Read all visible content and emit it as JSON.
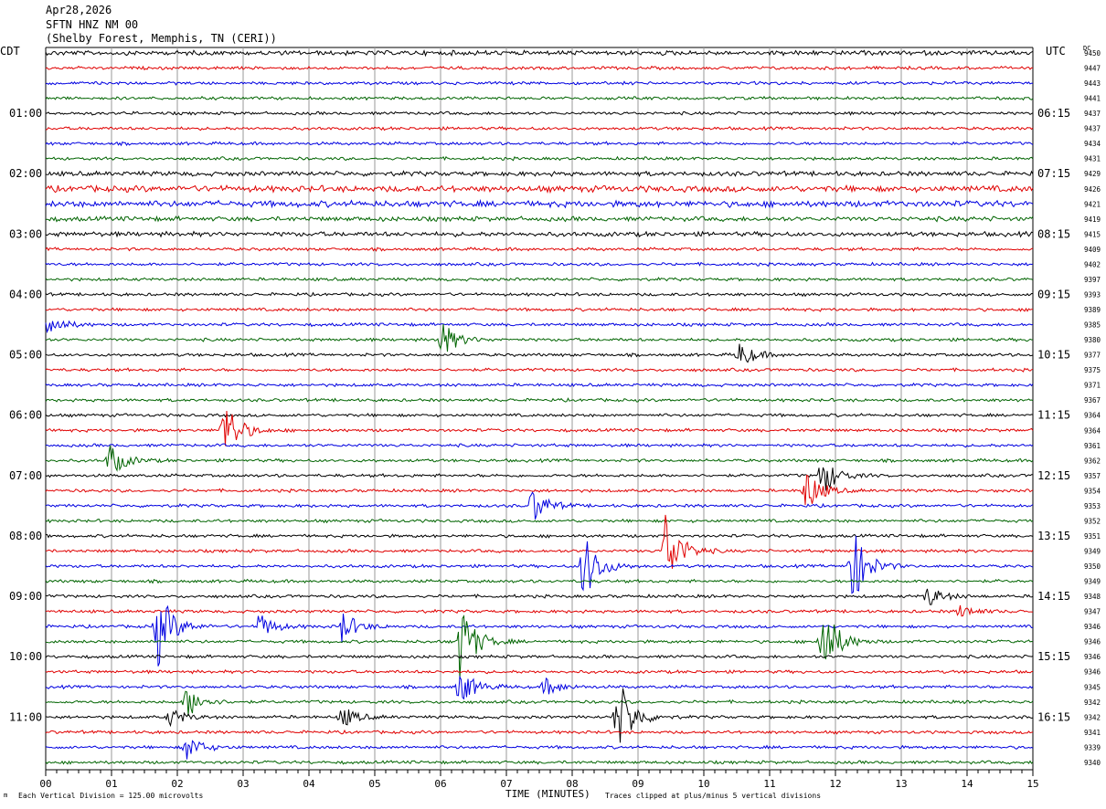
{
  "header": {
    "date": "Apr28,2026",
    "station": "SFTN HNZ NM 00",
    "location": "(Shelby Forest, Memphis, TN (CERI))"
  },
  "labels": {
    "left_tz": "CDT",
    "right_tz": "UTC",
    "dc": "DC"
  },
  "footer": {
    "scale_note": "Each Vertical Division =  125.00 microvolts",
    "xlabel": "TIME (MINUTES)",
    "clip_note": "Traces clipped at plus/minus 5 vertical divisions",
    "corner_mark": "m"
  },
  "colors": {
    "trace_cycle": [
      "#000000",
      "#e00000",
      "#0000e0",
      "#006400"
    ],
    "grid": "#9a9a9a"
  },
  "chart_data": {
    "type": "helicorder",
    "xlabel": "TIME (MINUTES)",
    "xlim": [
      0,
      15
    ],
    "xticks": [
      "00",
      "01",
      "02",
      "03",
      "04",
      "05",
      "06",
      "07",
      "08",
      "09",
      "10",
      "11",
      "12",
      "13",
      "14",
      "15"
    ],
    "line_duration_minutes": 15,
    "num_lines": 48,
    "left_time_labels": [
      {
        "line": 4,
        "label": "01:00"
      },
      {
        "line": 8,
        "label": "02:00"
      },
      {
        "line": 12,
        "label": "03:00"
      },
      {
        "line": 16,
        "label": "04:00"
      },
      {
        "line": 20,
        "label": "05:00"
      },
      {
        "line": 24,
        "label": "06:00"
      },
      {
        "line": 28,
        "label": "07:00"
      },
      {
        "line": 32,
        "label": "08:00"
      },
      {
        "line": 36,
        "label": "09:00"
      },
      {
        "line": 40,
        "label": "10:00"
      },
      {
        "line": 44,
        "label": "11:00"
      }
    ],
    "right_time_labels": [
      {
        "line": 4,
        "label": "06:15"
      },
      {
        "line": 8,
        "label": "07:15"
      },
      {
        "line": 12,
        "label": "08:15"
      },
      {
        "line": 16,
        "label": "09:15"
      },
      {
        "line": 20,
        "label": "10:15"
      },
      {
        "line": 24,
        "label": "11:15"
      },
      {
        "line": 28,
        "label": "12:15"
      },
      {
        "line": 32,
        "label": "13:15"
      },
      {
        "line": 36,
        "label": "14:15"
      },
      {
        "line": 40,
        "label": "15:15"
      },
      {
        "line": 44,
        "label": "16:15"
      }
    ],
    "dc_values": [
      "9450",
      "9447",
      "9443",
      "9441",
      "9437",
      "9437",
      "9434",
      "9431",
      "9429",
      "9426",
      "9421",
      "9419",
      "9415",
      "9409",
      "9402",
      "9397",
      "9393",
      "9389",
      "9385",
      "9380",
      "9377",
      "9375",
      "9371",
      "9367",
      "9364",
      "9364",
      "9361",
      "9362",
      "9357",
      "9354",
      "9353",
      "9352",
      "9351",
      "9349",
      "9350",
      "9349",
      "9348",
      "9347",
      "9346",
      "9346",
      "9346",
      "9346",
      "9345",
      "9342",
      "9342",
      "9341",
      "9339",
      "9340"
    ],
    "noise_levels": [
      3,
      2,
      2,
      2,
      2,
      2,
      2,
      2,
      3,
      4,
      4,
      3,
      3,
      2,
      2,
      2,
      2,
      2,
      2,
      2,
      2,
      2,
      2,
      2,
      2,
      2,
      2,
      2,
      2,
      2,
      2,
      2,
      2,
      2,
      2,
      2,
      2,
      2,
      2,
      2,
      2,
      2,
      2,
      2,
      2,
      2,
      2,
      2
    ],
    "events": [
      {
        "line": 18,
        "minute": 0.02,
        "amplitude": 14
      },
      {
        "line": 19,
        "minute": 6.0,
        "amplitude": 22
      },
      {
        "line": 20,
        "minute": 10.55,
        "amplitude": 14
      },
      {
        "line": 25,
        "minute": 2.72,
        "amplitude": 34
      },
      {
        "line": 27,
        "minute": 0.98,
        "amplitude": 18
      },
      {
        "line": 28,
        "minute": 11.8,
        "amplitude": 22
      },
      {
        "line": 29,
        "minute": 11.55,
        "amplitude": 24
      },
      {
        "line": 30,
        "minute": 7.4,
        "amplitude": 20
      },
      {
        "line": 33,
        "minute": 9.42,
        "amplitude": 45
      },
      {
        "line": 34,
        "minute": 8.18,
        "amplitude": 38
      },
      {
        "line": 34,
        "minute": 12.25,
        "amplitude": 45
      },
      {
        "line": 36,
        "minute": 13.4,
        "amplitude": 12
      },
      {
        "line": 37,
        "minute": 13.9,
        "amplitude": 7
      },
      {
        "line": 38,
        "minute": 1.7,
        "amplitude": 45
      },
      {
        "line": 38,
        "minute": 3.25,
        "amplitude": 14
      },
      {
        "line": 38,
        "minute": 4.5,
        "amplitude": 18
      },
      {
        "line": 39,
        "minute": 6.3,
        "amplitude": 45
      },
      {
        "line": 39,
        "minute": 11.8,
        "amplitude": 45
      },
      {
        "line": 42,
        "minute": 6.3,
        "amplitude": 20
      },
      {
        "line": 42,
        "minute": 7.6,
        "amplitude": 10
      },
      {
        "line": 43,
        "minute": 2.15,
        "amplitude": 18
      },
      {
        "line": 44,
        "minute": 1.9,
        "amplitude": 10
      },
      {
        "line": 44,
        "minute": 4.5,
        "amplitude": 12
      },
      {
        "line": 44,
        "minute": 8.7,
        "amplitude": 45
      },
      {
        "line": 46,
        "minute": 2.15,
        "amplitude": 14
      }
    ]
  }
}
